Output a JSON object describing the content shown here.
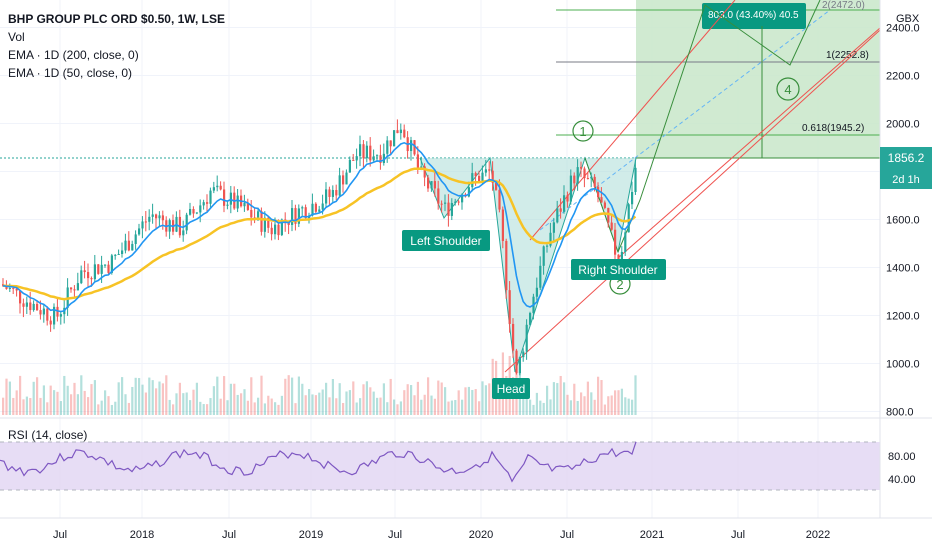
{
  "legend": {
    "symbol": "BHP GROUP PLC ORD $0.50, 1W, LSE",
    "vol": "Vol",
    "ema200": "EMA · 1D (200, close, 0)",
    "ema50": "EMA · 1D (50, close, 0)"
  },
  "rsi_title": "RSI (14, close)",
  "currency": "GBX",
  "price_badge": "1856.2",
  "time_badge": "2d 1h",
  "colors": {
    "up": "#26a69a",
    "down": "#ef5350",
    "ema_fast": "#2196f3",
    "ema_slow": "#f7c325",
    "rsi_line": "#7e57c2",
    "rsi_band": "#e1d5f3",
    "target_box": "#c8e6c9",
    "channel": "#ef5350",
    "pattern_fill": "#b2dfdb",
    "label_bg": "#089981"
  },
  "chart_data": {
    "type": "candlestick",
    "y_range": [
      780,
      2470
    ],
    "y_ticks": [
      "2400.0",
      "2200.0",
      "2000.0",
      "1800.0",
      "1600.0",
      "1400.0",
      "1200.0",
      "1000.0",
      "800.0"
    ],
    "x_ticks": [
      "Jul",
      "2018",
      "Jul",
      "2019",
      "Jul",
      "2020",
      "Jul",
      "2021",
      "Jul",
      "2022"
    ],
    "rsi_ticks": [
      "80.00",
      "40.00"
    ],
    "fib_levels": [
      {
        "label": "1(2252.8)",
        "value": 2252.8
      },
      {
        "label": "0.618(1945.2)",
        "value": 1945.2
      }
    ],
    "fib_top_label": "2(2472.0)",
    "projection_label": "803.0 (43.40%) 40.5",
    "annotations": [
      "Left Shoulder",
      "Head",
      "Right Shoulder"
    ],
    "wave_labels": [
      "1",
      "2",
      "4"
    ],
    "last_price": 1856.2
  }
}
